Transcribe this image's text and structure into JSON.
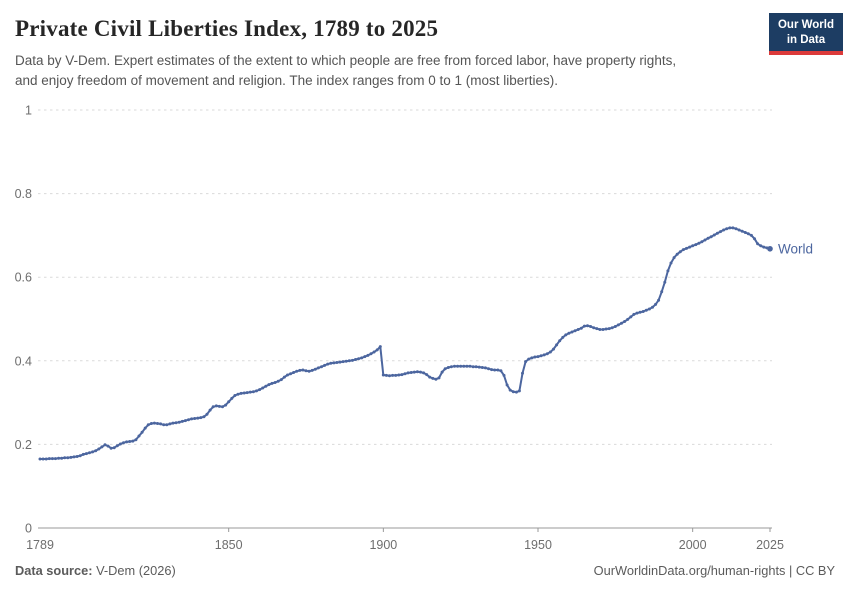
{
  "header": {
    "title": "Private Civil Liberties Index, 1789 to 2025",
    "subtitle_lines": [
      "Data by V-Dem. Expert estimates of the extent to which people are free from forced labor, have property rights,",
      "and enjoy freedom of movement and religion. The index ranges from 0 to 1 (most liberties)."
    ],
    "logo": {
      "line1": "Our World",
      "line2": "in Data",
      "bg_color": "#1d3d63",
      "bar_color": "#dc3a3a"
    }
  },
  "chart_data": {
    "type": "line",
    "title": "Private Civil Liberties Index, 1789 to 2025",
    "xlabel": "",
    "ylabel": "",
    "xlim": [
      1789,
      2025
    ],
    "ylim": [
      0,
      1
    ],
    "x_ticks": [
      1789,
      1850,
      1900,
      1950,
      2000,
      2025
    ],
    "y_ticks": [
      0,
      0.2,
      0.4,
      0.6,
      0.8,
      1
    ],
    "grid": "horizontal-dashed",
    "legend_position": "line-end-label",
    "point_markers": true,
    "colors": {
      "series": "#4c669f",
      "gridline": "#dadada",
      "axis": "#999999",
      "tick_label": "#6e6e6e"
    },
    "series": [
      {
        "name": "World",
        "color": "#4c669f",
        "x_start": 1789,
        "x_step": 1,
        "values": [
          0.165,
          0.165,
          0.165,
          0.166,
          0.166,
          0.166,
          0.167,
          0.167,
          0.168,
          0.168,
          0.169,
          0.17,
          0.171,
          0.173,
          0.176,
          0.178,
          0.18,
          0.182,
          0.185,
          0.189,
          0.194,
          0.199,
          0.196,
          0.191,
          0.192,
          0.197,
          0.201,
          0.204,
          0.206,
          0.207,
          0.208,
          0.211,
          0.22,
          0.229,
          0.239,
          0.247,
          0.25,
          0.251,
          0.25,
          0.249,
          0.247,
          0.247,
          0.249,
          0.251,
          0.252,
          0.253,
          0.255,
          0.257,
          0.259,
          0.261,
          0.262,
          0.263,
          0.264,
          0.266,
          0.272,
          0.282,
          0.29,
          0.292,
          0.291,
          0.29,
          0.294,
          0.302,
          0.31,
          0.317,
          0.32,
          0.322,
          0.323,
          0.324,
          0.325,
          0.326,
          0.328,
          0.331,
          0.335,
          0.339,
          0.343,
          0.346,
          0.348,
          0.351,
          0.355,
          0.361,
          0.366,
          0.369,
          0.372,
          0.375,
          0.377,
          0.378,
          0.376,
          0.375,
          0.377,
          0.38,
          0.383,
          0.386,
          0.389,
          0.392,
          0.394,
          0.395,
          0.396,
          0.397,
          0.398,
          0.399,
          0.4,
          0.401,
          0.403,
          0.405,
          0.407,
          0.41,
          0.413,
          0.417,
          0.421,
          0.426,
          0.434,
          0.366,
          0.365,
          0.364,
          0.365,
          0.365,
          0.366,
          0.367,
          0.369,
          0.371,
          0.372,
          0.373,
          0.374,
          0.373,
          0.371,
          0.367,
          0.361,
          0.358,
          0.356,
          0.359,
          0.373,
          0.381,
          0.384,
          0.386,
          0.387,
          0.387,
          0.387,
          0.387,
          0.387,
          0.387,
          0.386,
          0.386,
          0.385,
          0.384,
          0.383,
          0.381,
          0.379,
          0.378,
          0.378,
          0.376,
          0.365,
          0.342,
          0.33,
          0.326,
          0.325,
          0.328,
          0.37,
          0.398,
          0.404,
          0.407,
          0.409,
          0.41,
          0.412,
          0.414,
          0.417,
          0.421,
          0.428,
          0.438,
          0.448,
          0.456,
          0.462,
          0.466,
          0.469,
          0.472,
          0.475,
          0.478,
          0.483,
          0.484,
          0.482,
          0.479,
          0.477,
          0.475,
          0.475,
          0.476,
          0.477,
          0.479,
          0.482,
          0.486,
          0.49,
          0.494,
          0.499,
          0.505,
          0.511,
          0.514,
          0.516,
          0.518,
          0.521,
          0.524,
          0.528,
          0.535,
          0.545,
          0.565,
          0.588,
          0.615,
          0.634,
          0.647,
          0.655,
          0.661,
          0.666,
          0.669,
          0.672,
          0.675,
          0.678,
          0.681,
          0.685,
          0.689,
          0.693,
          0.697,
          0.701,
          0.705,
          0.709,
          0.713,
          0.716,
          0.718,
          0.718,
          0.716,
          0.713,
          0.71,
          0.707,
          0.704,
          0.7,
          0.692,
          0.68,
          0.675,
          0.672,
          0.67,
          0.668
        ]
      }
    ]
  },
  "footer": {
    "source_label": "Data source:",
    "source_value": " V-Dem (2026)",
    "credit": "OurWorldinData.org/human-rights | CC BY"
  }
}
